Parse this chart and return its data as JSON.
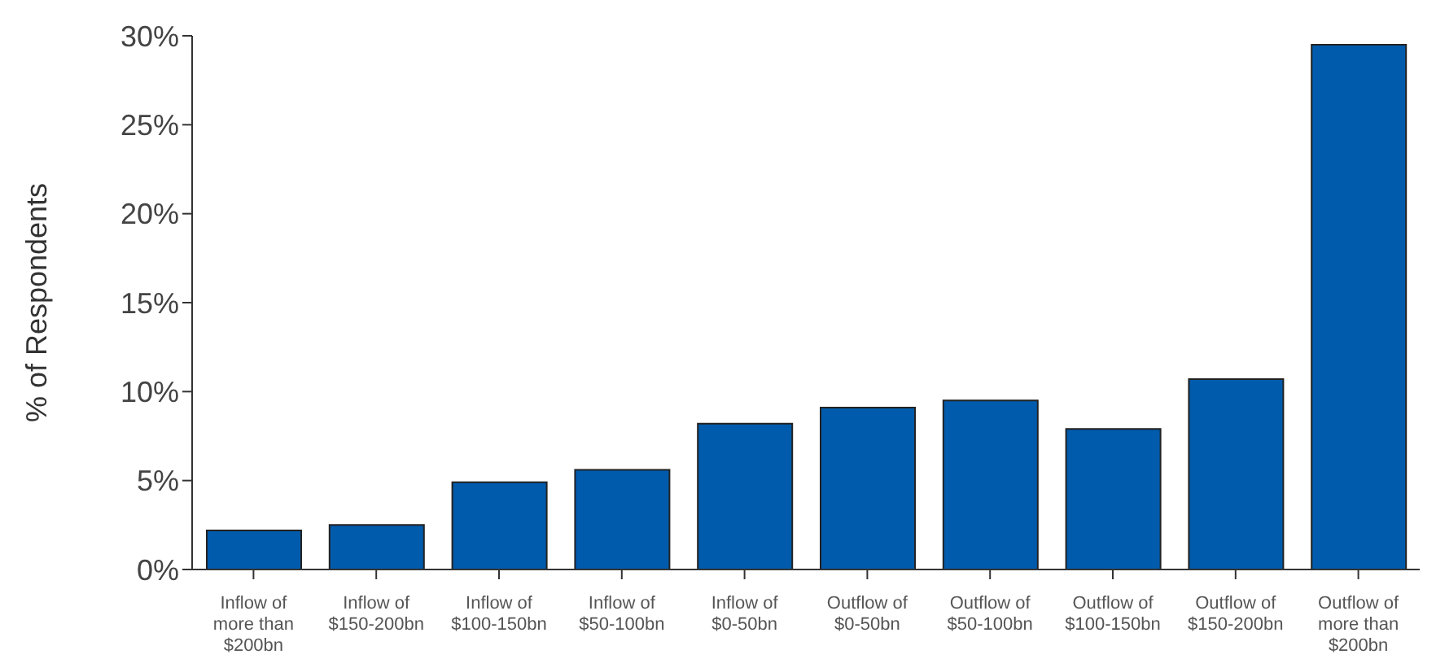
{
  "chart_data": {
    "type": "bar",
    "ylabel": "% of Respondents",
    "categories": [
      "Inflow of more than $200bn",
      "Inflow of $150-200bn",
      "Inflow of $100-150bn",
      "Inflow of $50-100bn",
      "Inflow of $0-50bn",
      "Outflow of $0-50bn",
      "Outflow of $50-100bn",
      "Outflow of $100-150bn",
      "Outflow of $150-200bn",
      "Outflow of more than $200bn"
    ],
    "values": [
      2.2,
      2.5,
      4.9,
      5.6,
      8.2,
      9.1,
      9.5,
      7.9,
      10.7,
      29.5
    ],
    "color": "#005bac",
    "ylim": [
      0,
      30
    ],
    "yticks": [
      {
        "value": 0,
        "label": "0%"
      },
      {
        "value": 5,
        "label": "5%"
      },
      {
        "value": 10,
        "label": "10%"
      },
      {
        "value": 15,
        "label": "15%"
      },
      {
        "value": 20,
        "label": "20%"
      },
      {
        "value": 25,
        "label": "25%"
      },
      {
        "value": 30,
        "label": "30%"
      }
    ],
    "grid": false
  }
}
